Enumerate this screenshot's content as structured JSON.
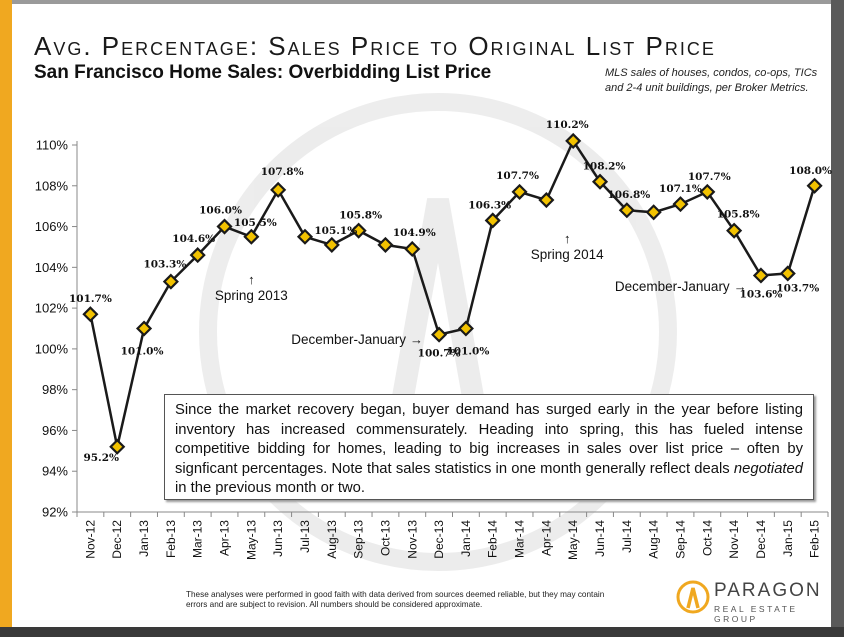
{
  "header": {
    "title": "Avg. Percentage: Sales Price to Original List Price",
    "subtitle": "San Francisco Home Sales: Overbidding List Price",
    "note": "MLS sales of houses, condos, co-ops, TICs and 2-4 unit buildings, per Broker Metrics."
  },
  "chart_data": {
    "type": "line",
    "categories": [
      "Nov-12",
      "Dec-12",
      "Jan-13",
      "Feb-13",
      "Mar-13",
      "Apr-13",
      "May-13",
      "Jun-13",
      "Jul-13",
      "Aug-13",
      "Sep-13",
      "Oct-13",
      "Nov-13",
      "Dec-13",
      "Jan-14",
      "Feb-14",
      "Mar-14",
      "Apr-14",
      "May-14",
      "Jun-14",
      "Jul-14",
      "Aug-14",
      "Sep-14",
      "Oct-14",
      "Nov-14",
      "Dec-14",
      "Jan-15",
      "Feb-15"
    ],
    "values": [
      101.7,
      95.2,
      101.0,
      103.3,
      104.6,
      106.0,
      105.5,
      107.8,
      105.5,
      105.1,
      105.8,
      105.1,
      104.9,
      100.7,
      101.0,
      106.3,
      107.7,
      107.3,
      110.2,
      108.2,
      106.8,
      106.7,
      107.1,
      107.7,
      105.8,
      103.6,
      103.7,
      108.0
    ],
    "data_labels": [
      "101.7%",
      "95.2%",
      "101.0%",
      "103.3%",
      "104.6%",
      "106.0%",
      "105.5%",
      "107.8%",
      "",
      "105.1%",
      "105.8%",
      "",
      "104.9%",
      "100.7%",
      "101.0%",
      "106.3%",
      "107.7%",
      "",
      "110.2%",
      "108.2%",
      "106.8%",
      "",
      "107.1%",
      "107.7%",
      "105.8%",
      "103.6%",
      "103.7%",
      "108.0%"
    ],
    "ylim": [
      92,
      110
    ],
    "yticks": [
      "92%",
      "94%",
      "96%",
      "98%",
      "100%",
      "102%",
      "104%",
      "106%",
      "108%",
      "110%"
    ],
    "ytick_values": [
      92,
      94,
      96,
      98,
      100,
      102,
      104,
      106,
      108,
      110
    ],
    "line_color": "#1a1a1a",
    "marker_color": "#f2c200",
    "annotations": [
      {
        "text": "Spring 2013",
        "arrow": "up"
      },
      {
        "text": "December-January",
        "arrow": "right"
      },
      {
        "text": "Spring 2014",
        "arrow": "up"
      },
      {
        "text": "December-January",
        "arrow": "right"
      }
    ]
  },
  "info_box": {
    "before": "Since the market recovery began, buyer demand has surged early in the year before listing inventory has increased commensurately. Heading into spring, this has fueled intense competitive bidding for homes, leading to big increases in sales over list price – often by signficant percentages. Note that sales statistics in one month generally reflect deals ",
    "emphasis": "negotiated",
    "after": " in the previous month or two."
  },
  "disclaimer": "These analyses were performed in good faith with data derived from sources deemed reliable, but they may contain errors and are subject to revision. All numbers should be considered approximate.",
  "logo": {
    "name": "PARAGON",
    "tagline": "REAL ESTATE GROUP"
  },
  "colors": {
    "accent_bar": "#f0a820",
    "logo_orange": "#f0a820"
  }
}
